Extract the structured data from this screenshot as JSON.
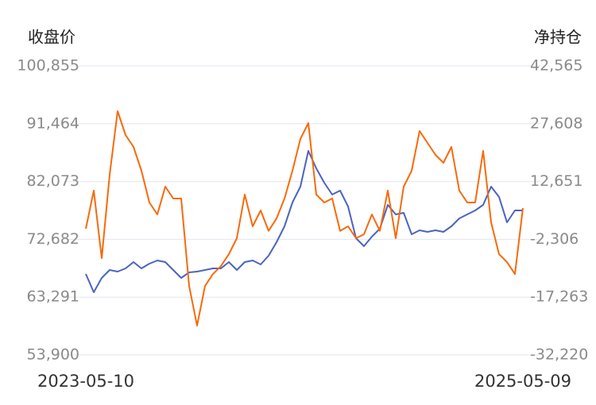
{
  "chart_data": {
    "type": "line",
    "ylabel": "收盘价",
    "y2label": "净持仓",
    "categories": [
      "2023-05-10",
      null,
      null,
      null,
      null,
      null,
      null,
      null,
      null,
      null,
      null,
      null,
      null,
      null,
      null,
      null,
      null,
      null,
      null,
      null,
      null,
      null,
      null,
      null,
      null,
      null,
      null,
      null,
      null,
      null,
      null,
      null,
      null,
      null,
      null,
      null,
      null,
      null,
      null,
      null,
      null,
      null,
      null,
      null,
      null,
      null,
      null,
      null,
      null,
      null,
      null,
      null,
      null,
      null,
      null,
      "2025-05-09"
    ],
    "ylim": [
      53900,
      100855
    ],
    "yticks": [
      {
        "value": 53900,
        "label": "53,900"
      },
      {
        "value": 63291,
        "label": "63,291"
      },
      {
        "value": 72682,
        "label": "72,682"
      },
      {
        "value": 82073,
        "label": "82,073"
      },
      {
        "value": 91464,
        "label": "91,464"
      },
      {
        "value": 100855,
        "label": "100,855"
      }
    ],
    "y2lim": [
      -32220,
      42565
    ],
    "y2ticks": [
      {
        "value": -32220,
        "label": "-32,220"
      },
      {
        "value": -17263,
        "label": "-17,263"
      },
      {
        "value": -2306,
        "label": "-2,306"
      },
      {
        "value": 12651,
        "label": "12,651"
      },
      {
        "value": 27608,
        "label": "27,608"
      },
      {
        "value": 42565,
        "label": "42,565"
      }
    ],
    "grid": true,
    "series": [
      {
        "color": "#4a64c0",
        "values": [
          67057,
          64090,
          66412,
          67702,
          67444,
          67960,
          68992,
          67960,
          68734,
          69250,
          68992,
          67702,
          66412,
          67315,
          67444,
          67702,
          67960,
          67960,
          68992,
          67702,
          68992,
          69250,
          68605,
          70024,
          72217,
          74797,
          78667,
          81247,
          87052,
          84214,
          81892,
          79957,
          80602,
          78022,
          72862,
          71572,
          73120,
          74410,
          78280,
          76732,
          76990,
          73507,
          74152,
          73894,
          74152,
          73894,
          74797,
          76087,
          76732,
          77377,
          78280,
          81247,
          79570,
          75442,
          77377,
          77377
        ]
      },
      {
        "color": "#f76a0a",
        "axis": "y2",
        "values": [
          437,
          10302,
          -7166,
          14412,
          30852,
          24687,
          21604,
          15440,
          7220,
          4137,
          11330,
          8247,
          8247,
          -14358,
          -24633,
          -14358,
          -11275,
          -9220,
          -6138,
          -2028,
          9275,
          1055,
          5165,
          -103,
          3100,
          8247,
          15440,
          23659,
          27770,
          9275,
          7220,
          8247,
          -103,
          1055,
          -2028,
          -1001,
          4137,
          -103,
          10302,
          -2028,
          11330,
          15440,
          25715,
          22632,
          19550,
          17495,
          21604,
          10302,
          7220,
          7220,
          20577,
          2081,
          -6138,
          -8193,
          -11275,
          5782
        ]
      }
    ]
  }
}
